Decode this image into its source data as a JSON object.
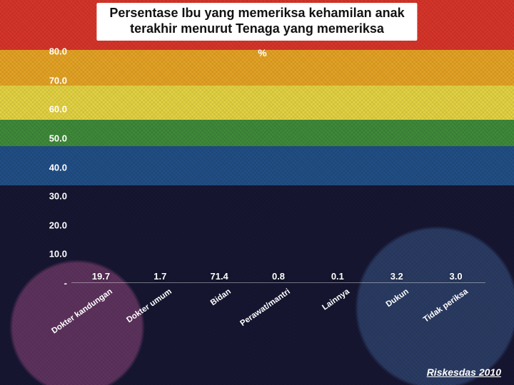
{
  "title": {
    "line1": "Persentase Ibu yang memeriksa kehamilan anak",
    "line2": "terakhir menurut Tenaga yang memeriksa",
    "fontsize": 18,
    "color": "#111111",
    "bg": "#ffffff"
  },
  "source": "Riskesdas 2010",
  "chart": {
    "type": "bar",
    "ylabel": "%",
    "ylim": [
      0,
      80
    ],
    "ytick_step": 10,
    "yticks": [
      "-",
      "10.0",
      "20.0",
      "30.0",
      "40.0",
      "50.0",
      "60.0",
      "70.0",
      "80.0"
    ],
    "bar_color": "#2fa9e0",
    "value_color": "#ffffff",
    "tick_color": "#ffffff",
    "bar_width_ratio": 0.44,
    "label_fontsize": 13,
    "category_fontsize": 11.5,
    "category_rotation_deg": -35,
    "background": "transparent",
    "categories": [
      "Dokter kandungan",
      "Dokter umum",
      "Bidan",
      "Perawat/mantri",
      "Lainnya",
      "Dukun",
      "Tidak periksa"
    ],
    "values": [
      19.7,
      1.7,
      71.4,
      0.8,
      0.1,
      3.2,
      3.0
    ]
  },
  "background": {
    "stripes": [
      "#d9352a",
      "#e6a425",
      "#e5d443",
      "#3f8b3a",
      "#214f86",
      "#161632"
    ]
  }
}
